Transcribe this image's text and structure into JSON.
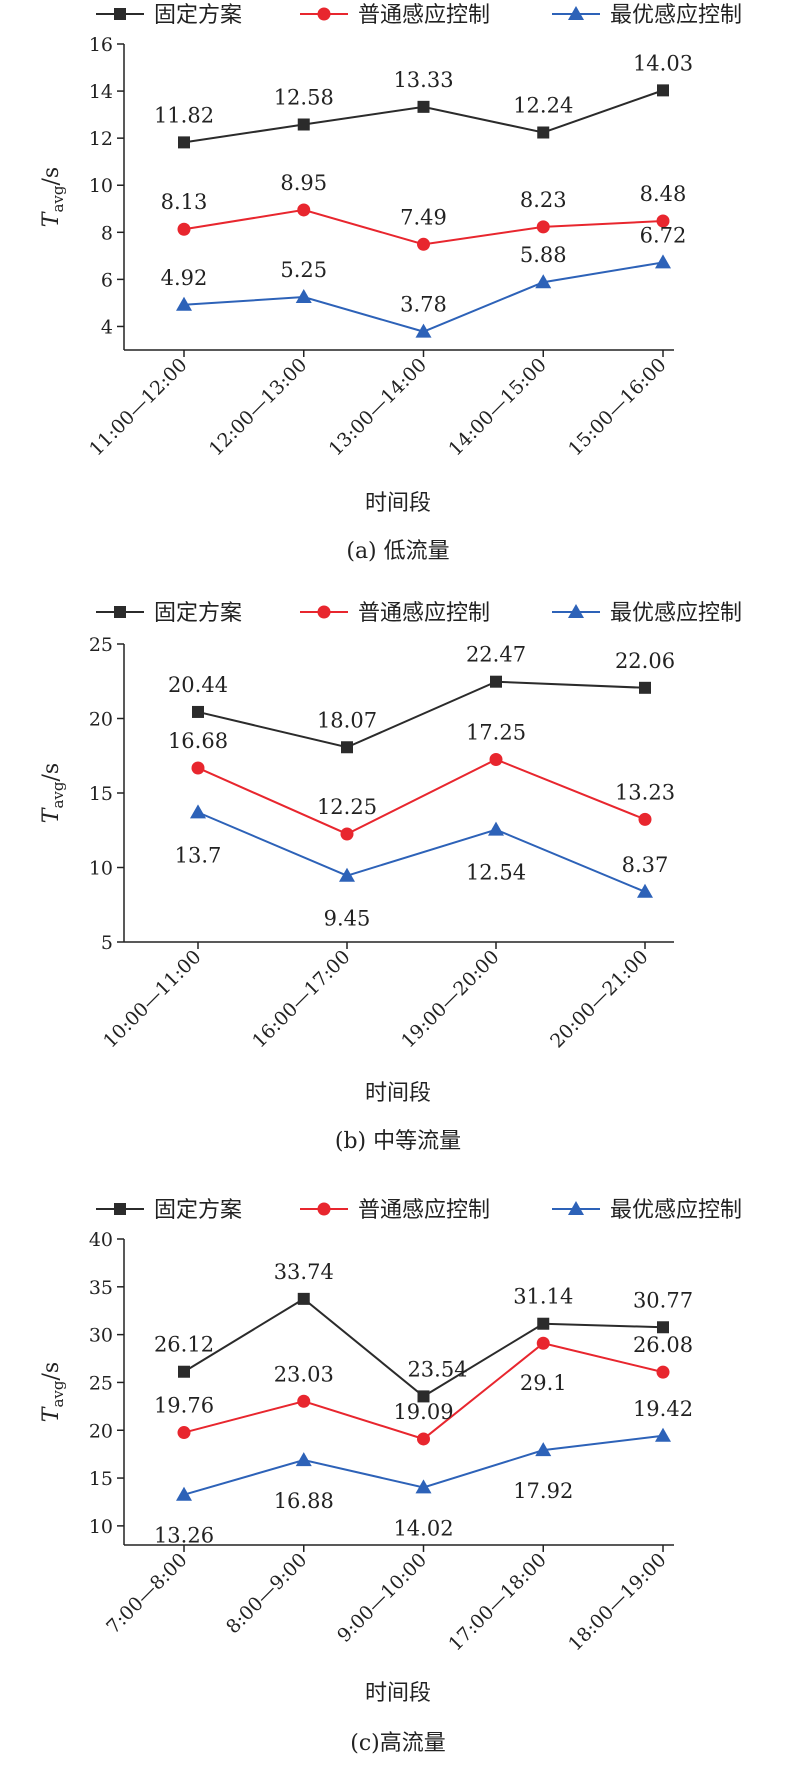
{
  "legend": {
    "entries": [
      "固定方案",
      "普通感应控制",
      "最优感应控制"
    ]
  },
  "series_colors": [
    "#2b2b2b",
    "#e8262e",
    "#2d62b8"
  ],
  "series_markers": [
    "square",
    "circle",
    "triangle"
  ],
  "chart_data": [
    {
      "type": "line",
      "caption": "(a) 低流量",
      "xlabel": "时间段",
      "ylabel_main": "T",
      "ylabel_sub": "avg",
      "ylabel_unit": "/s",
      "categories": [
        "11:00—12:00",
        "12:00—13:00",
        "13:00—14:00",
        "14:00—15:00",
        "15:00—16:00"
      ],
      "ylim": [
        3,
        16
      ],
      "yticks": [
        4,
        6,
        8,
        10,
        12,
        14,
        16
      ],
      "legend_position": "top",
      "series": [
        {
          "name": "固定方案",
          "values": [
            11.82,
            12.58,
            13.33,
            12.24,
            14.03
          ]
        },
        {
          "name": "普通感应控制",
          "values": [
            8.13,
            8.95,
            7.49,
            8.23,
            8.48
          ]
        },
        {
          "name": "最优感应控制",
          "values": [
            4.92,
            5.25,
            3.78,
            5.88,
            6.72
          ]
        }
      ]
    },
    {
      "type": "line",
      "caption": "(b) 中等流量",
      "xlabel": "时间段",
      "ylabel_main": "T",
      "ylabel_sub": "avg",
      "ylabel_unit": "/s",
      "categories": [
        "10:00—11:00",
        "16:00—17:00",
        "19:00—20:00",
        "20:00—21:00"
      ],
      "ylim": [
        5,
        25
      ],
      "yticks": [
        5,
        10,
        15,
        20,
        25
      ],
      "legend_position": "top",
      "series": [
        {
          "name": "固定方案",
          "values": [
            20.44,
            18.07,
            22.47,
            22.06
          ]
        },
        {
          "name": "普通感应控制",
          "values": [
            16.68,
            12.25,
            17.25,
            13.23
          ]
        },
        {
          "name": "最优感应控制",
          "values": [
            13.7,
            9.45,
            12.54,
            8.37
          ]
        }
      ]
    },
    {
      "type": "line",
      "caption": "(c)高流量",
      "xlabel": "时间段",
      "ylabel_main": "T",
      "ylabel_sub": "avg",
      "ylabel_unit": "/s",
      "categories": [
        "7:00—8:00",
        "8:00—9:00",
        "9:00—10:00",
        "17:00—18:00",
        "18:00—19:00"
      ],
      "ylim": [
        8,
        40
      ],
      "yticks": [
        10,
        15,
        20,
        25,
        30,
        35,
        40
      ],
      "legend_position": "top",
      "series": [
        {
          "name": "固定方案",
          "values": [
            26.12,
            33.74,
            23.54,
            31.14,
            30.77
          ]
        },
        {
          "name": "普通感应控制",
          "values": [
            19.76,
            23.03,
            19.09,
            29.1,
            26.08
          ]
        },
        {
          "name": "最优感应控制",
          "values": [
            13.26,
            16.88,
            14.02,
            17.92,
            19.42
          ]
        }
      ]
    }
  ]
}
